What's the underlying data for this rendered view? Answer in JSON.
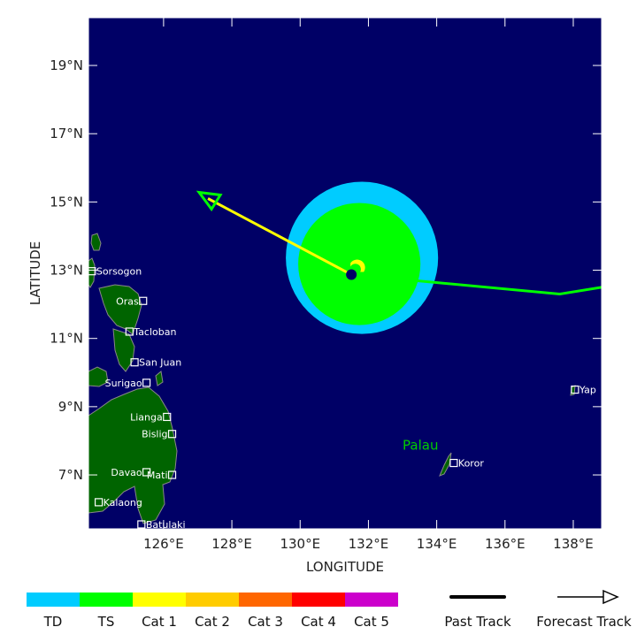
{
  "map": {
    "x_axis_label": "LONGITUDE",
    "y_axis_label": "LATITUDE",
    "lon_range": [
      123.8,
      138.83
    ],
    "lat_range": [
      5.42,
      20.4
    ],
    "lon_ticks": [
      "126°E",
      "128°E",
      "130°E",
      "132°E",
      "134°E",
      "136°E",
      "138°E"
    ],
    "lon_tick_values": [
      126,
      128,
      130,
      132,
      134,
      136,
      138
    ],
    "lat_ticks": [
      "19°N",
      "17°N",
      "15°N",
      "13°N",
      "11°N",
      "9°N",
      "7°N"
    ],
    "lat_tick_values": [
      19,
      17,
      15,
      13,
      11,
      9,
      7
    ],
    "ocean_color": "#000066",
    "land_color": "#006400",
    "region_label": {
      "text": "Palau",
      "lon": 133.0,
      "lat": 7.9,
      "color": "#00cc00"
    },
    "cities": [
      {
        "name": "Sorsogon",
        "lon": 123.9,
        "lat": 12.97,
        "side": "right"
      },
      {
        "name": "Oras",
        "lon": 125.4,
        "lat": 12.1,
        "side": "left"
      },
      {
        "name": "Tacloban",
        "lon": 125.0,
        "lat": 11.2,
        "side": "right"
      },
      {
        "name": "San Juan",
        "lon": 125.15,
        "lat": 10.3,
        "side": "right"
      },
      {
        "name": "Surigao",
        "lon": 125.5,
        "lat": 9.7,
        "side": "left"
      },
      {
        "name": "Lianga",
        "lon": 126.1,
        "lat": 8.7,
        "side": "left"
      },
      {
        "name": "Bislig",
        "lon": 126.25,
        "lat": 8.2,
        "side": "left"
      },
      {
        "name": "Davao",
        "lon": 125.5,
        "lat": 7.08,
        "side": "left"
      },
      {
        "name": "Mati",
        "lon": 126.25,
        "lat": 7.0,
        "side": "left"
      },
      {
        "name": "Kalaong",
        "lon": 124.1,
        "lat": 6.2,
        "side": "right"
      },
      {
        "name": "Batulaki",
        "lon": 125.35,
        "lat": 5.55,
        "side": "right"
      },
      {
        "name": "Koror",
        "lon": 134.5,
        "lat": 7.35,
        "side": "right"
      },
      {
        "name": "Yap",
        "lon": 138.05,
        "lat": 9.5,
        "side": "right"
      }
    ],
    "storm": {
      "center": {
        "lon": 131.5,
        "lat": 12.87
      },
      "wind_radii_deg": {
        "TD": 2.23,
        "TS": 1.79
      },
      "past_track": [
        {
          "lon": 138.83,
          "lat": 12.5
        },
        {
          "lon": 137.6,
          "lat": 12.3
        },
        {
          "lon": 131.5,
          "lat": 12.87
        }
      ],
      "past_track_color": "#00ff00",
      "forecast_track": [
        {
          "lon": 131.5,
          "lat": 12.87
        },
        {
          "lon": 127.3,
          "lat": 15.1
        }
      ],
      "forecast_track_color": "#ffff00"
    }
  },
  "legend": {
    "categories": [
      {
        "label": "TD",
        "color": "#00ccff"
      },
      {
        "label": "TS",
        "color": "#00ff00"
      },
      {
        "label": "Cat 1",
        "color": "#ffff00"
      },
      {
        "label": "Cat 2",
        "color": "#ffcc00"
      },
      {
        "label": "Cat 3",
        "color": "#ff6600"
      },
      {
        "label": "Cat 4",
        "color": "#ff0000"
      },
      {
        "label": "Cat 5",
        "color": "#cc00cc"
      }
    ],
    "past_track_label": "Past Track",
    "forecast_track_label": "Forecast Track"
  }
}
